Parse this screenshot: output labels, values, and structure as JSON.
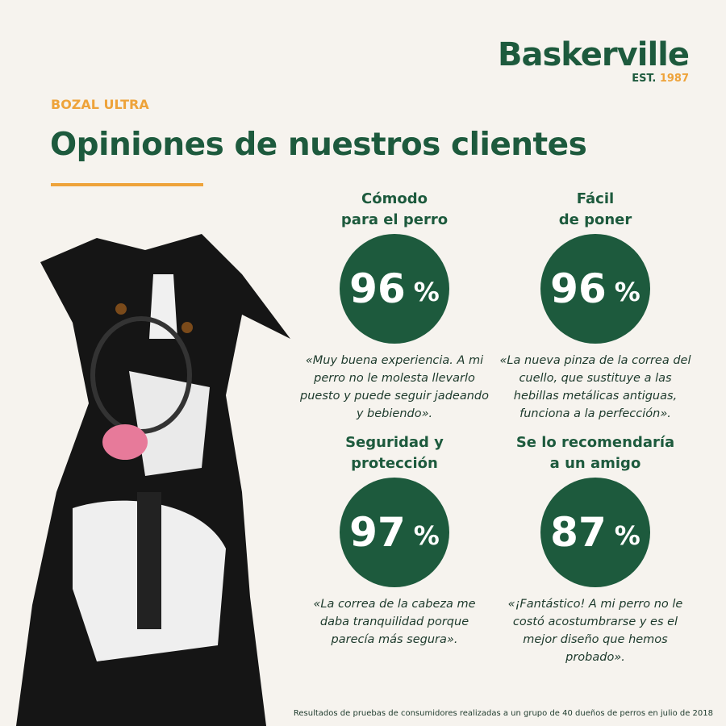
{
  "brand": {
    "name": "Baskerville",
    "registered": "®",
    "est_label": "EST.",
    "est_year": "1987"
  },
  "kicker": "BOZAL ULTRA",
  "title": "Opiniones de nuestros clientes",
  "stats": [
    {
      "heading1": "Cómodo",
      "heading2": "para el perro",
      "value": "96",
      "unit": "%",
      "quote": "«Muy buena experiencia. A mi perro no le molesta llevarlo puesto y puede seguir jadeando y bebiendo»."
    },
    {
      "heading1": "Fácil",
      "heading2": "de poner",
      "value": "96",
      "unit": "%",
      "quote": "«La nueva pinza de la correa del cuello, que sustituye a las hebillas metálicas antiguas, funciona a la perfección»."
    },
    {
      "heading1": "Seguridad y",
      "heading2": "protección",
      "value": "97",
      "unit": "%",
      "quote": "«La correa de la cabeza me daba tranquilidad porque parecía más segura»."
    },
    {
      "heading1": "Se lo recomendaría",
      "heading2": "a un amigo",
      "value": "87",
      "unit": "%",
      "quote": "«¡Fantástico! A mi perro no le costó acostumbrarse y es el mejor diseño que hemos probado»."
    }
  ],
  "footnote": "Resultados de pruebas de consumidores realizadas a un grupo de 40 dueños de perros en julio de 2018",
  "colors": {
    "green": "#1d5a3d",
    "orange": "#eea33a",
    "background": "#f6f3ee"
  }
}
